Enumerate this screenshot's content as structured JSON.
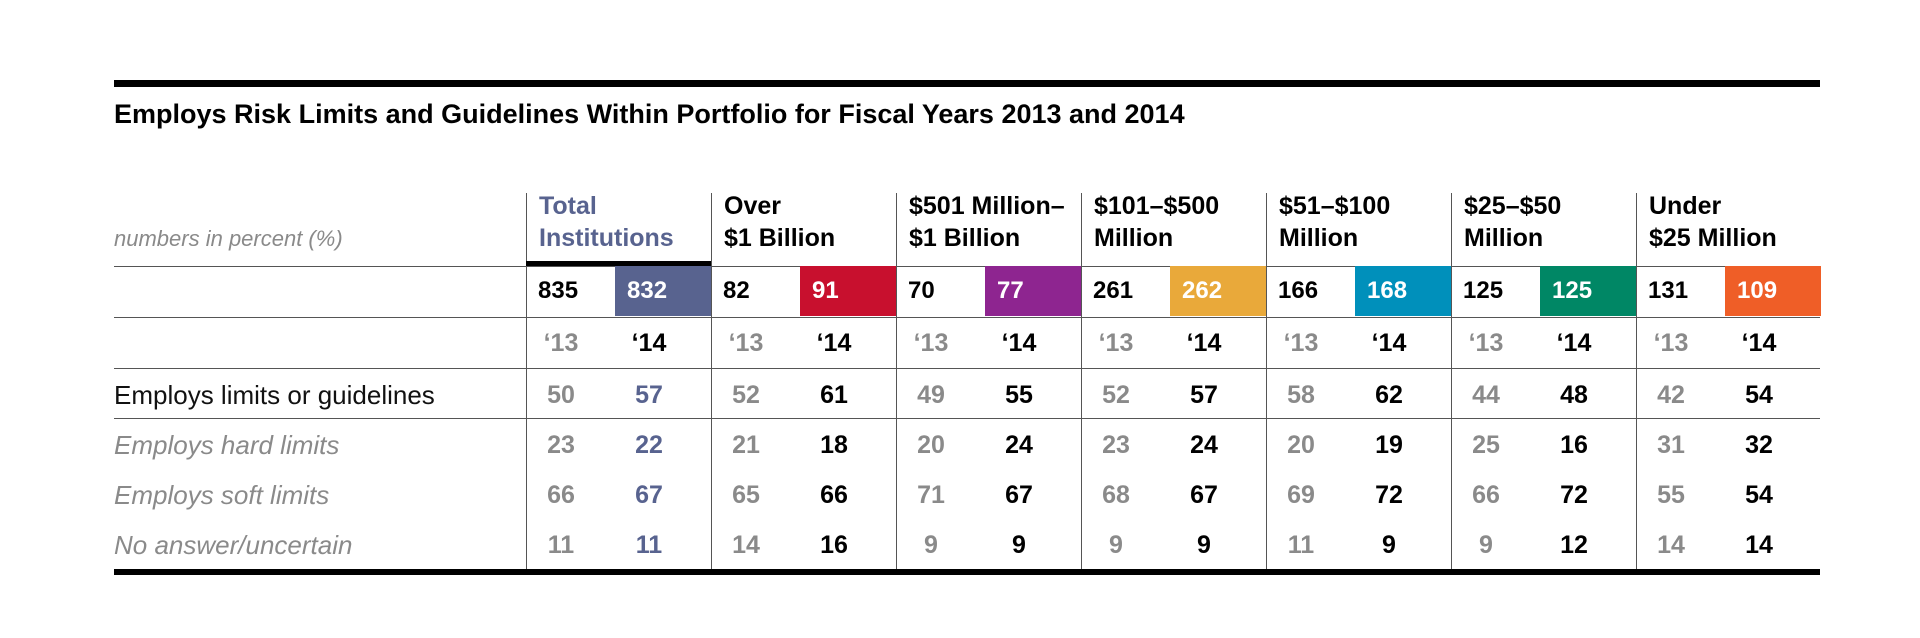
{
  "chart_data": {
    "type": "table",
    "title": "Employs Risk Limits and Guidelines Within Portfolio for Fiscal Years 2013 and 2014",
    "units_note": "numbers in percent (%)",
    "year_labels": [
      "‘13",
      "‘14"
    ],
    "groups": [
      {
        "label_lines": [
          "Total",
          "Institutions"
        ],
        "n13": "835",
        "n14": "832",
        "color": "#58638f",
        "highlight": true
      },
      {
        "label_lines": [
          "Over",
          "$1 Billion"
        ],
        "n13": "82",
        "n14": "91",
        "color": "#c8102e",
        "highlight": false
      },
      {
        "label_lines": [
          "$501 Million–",
          "$1 Billion"
        ],
        "n13": "70",
        "n14": "77",
        "color": "#8e2590",
        "highlight": false
      },
      {
        "label_lines": [
          "$101–$500",
          "Million"
        ],
        "n13": "261",
        "n14": "262",
        "color": "#e9a93a",
        "highlight": false
      },
      {
        "label_lines": [
          "$51–$100",
          "Million"
        ],
        "n13": "166",
        "n14": "168",
        "color": "#0090bb",
        "highlight": false
      },
      {
        "label_lines": [
          "$25–$50",
          "Million"
        ],
        "n13": "125",
        "n14": "125",
        "color": "#008765",
        "highlight": false
      },
      {
        "label_lines": [
          "Under",
          "$25 Million"
        ],
        "n13": "131",
        "n14": "109",
        "color": "#ef5e27",
        "highlight": false
      }
    ],
    "rows": [
      {
        "label": "Employs limits or guidelines",
        "style": "main",
        "values": [
          [
            50,
            57
          ],
          [
            52,
            61
          ],
          [
            49,
            55
          ],
          [
            52,
            57
          ],
          [
            58,
            62
          ],
          [
            44,
            48
          ],
          [
            42,
            54
          ]
        ]
      },
      {
        "label": "Employs hard limits",
        "style": "sub",
        "values": [
          [
            23,
            22
          ],
          [
            21,
            18
          ],
          [
            20,
            24
          ],
          [
            23,
            24
          ],
          [
            20,
            19
          ],
          [
            25,
            16
          ],
          [
            31,
            32
          ]
        ]
      },
      {
        "label": "Employs soft limits",
        "style": "sub",
        "values": [
          [
            66,
            67
          ],
          [
            65,
            66
          ],
          [
            71,
            67
          ],
          [
            68,
            67
          ],
          [
            69,
            72
          ],
          [
            66,
            72
          ],
          [
            55,
            54
          ]
        ]
      },
      {
        "label": "No answer/uncertain",
        "style": "sub",
        "values": [
          [
            11,
            11
          ],
          [
            14,
            16
          ],
          [
            9,
            9
          ],
          [
            9,
            9
          ],
          [
            11,
            9
          ],
          [
            9,
            12
          ],
          [
            14,
            14
          ]
        ]
      }
    ]
  },
  "colors": {
    "gray_text": "#8a8a8a",
    "total_accent": "#58638f",
    "black": "#000000"
  }
}
